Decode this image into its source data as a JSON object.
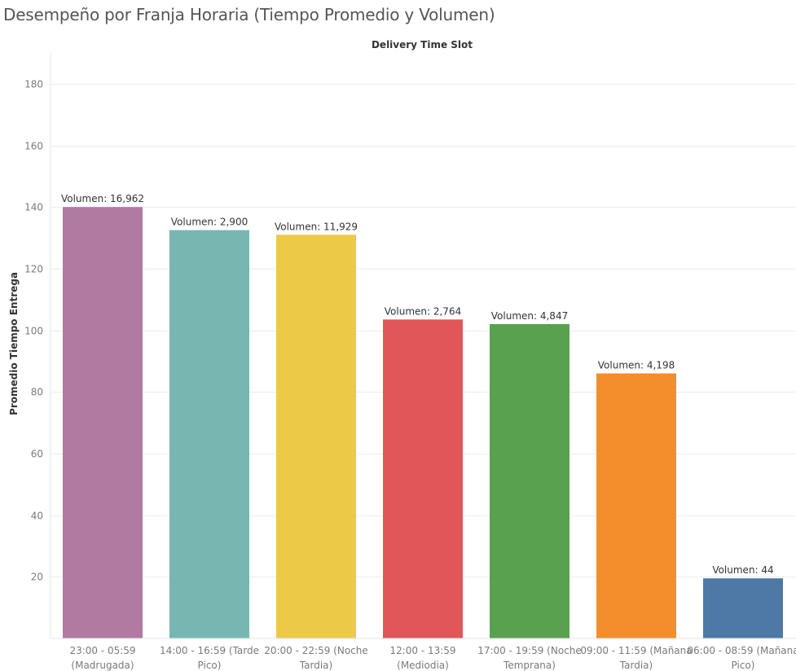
{
  "title": "Desempeño por Franja Horaria (Tiempo Promedio y Volumen)",
  "chart_data": {
    "type": "bar",
    "column_header": "Delivery Time Slot",
    "ylabel": "Promedio Tiempo Entrega",
    "ylim": [
      0,
      190
    ],
    "yticks": [
      20,
      40,
      60,
      80,
      100,
      120,
      140,
      160,
      180
    ],
    "grid": true,
    "categories": [
      [
        "23:00 - 05:59",
        "(Madrugada)"
      ],
      [
        "14:00 - 16:59 (Tarde",
        "Pico)"
      ],
      [
        "20:00 - 22:59 (Noche",
        "Tardia)"
      ],
      [
        "12:00 - 13:59",
        "(Mediodia)"
      ],
      [
        "17:00 - 19:59 (Noche",
        "Temprana)"
      ],
      [
        "09:00 - 11:59 (Mañana",
        "Tardia)"
      ],
      [
        "06:00 - 08:59 (Mañana",
        "Pico)"
      ]
    ],
    "values": [
      140,
      132.5,
      131,
      103.5,
      102,
      86,
      19.5
    ],
    "data_labels": [
      "Volumen: 16,962",
      "Volumen: 2,900",
      "Volumen: 11,929",
      "Volumen: 2,764",
      "Volumen: 4,847",
      "Volumen: 4,198",
      "Volumen: 44"
    ],
    "colors": [
      "#b07aa1",
      "#76b7b2",
      "#edc948",
      "#e15759",
      "#59a14f",
      "#f28e2b",
      "#4e79a7"
    ]
  }
}
